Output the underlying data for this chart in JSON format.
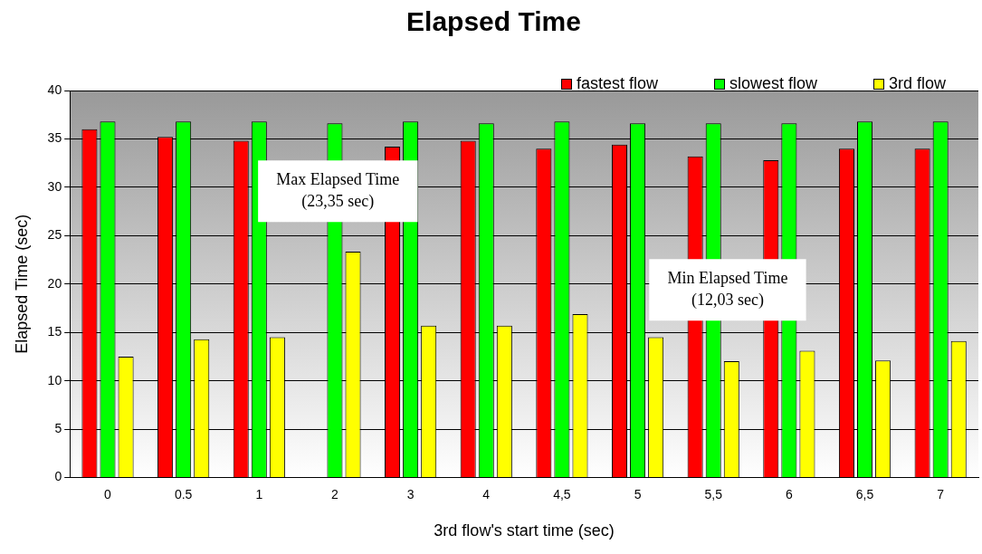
{
  "chart_data": {
    "type": "bar",
    "title": "Elapsed Time",
    "xlabel": "3rd flow's start time (sec)",
    "ylabel": "Elapsed Time (sec)",
    "categories": [
      "0",
      "0.5",
      "1",
      "2",
      "3",
      "4",
      "4,5",
      "5",
      "5,5",
      "6",
      "6,5",
      "7"
    ],
    "series": [
      {
        "name": "fastest flow",
        "color": "#ff0000",
        "values": [
          36.0,
          35.2,
          34.8,
          null,
          34.2,
          34.8,
          34.0,
          34.4,
          33.2,
          32.8,
          34.0,
          34.0
        ]
      },
      {
        "name": "slowest flow",
        "color": "#00ff00",
        "values": [
          36.8,
          36.8,
          36.8,
          36.6,
          36.8,
          36.6,
          36.8,
          36.6,
          36.6,
          36.6,
          36.8,
          36.8
        ]
      },
      {
        "name": "3rd flow",
        "color": "#ffff00",
        "values": [
          12.5,
          14.3,
          14.5,
          23.35,
          15.7,
          15.7,
          16.9,
          14.5,
          12.03,
          13.1,
          12.1,
          14.1
        ]
      }
    ],
    "ylim": [
      0,
      40
    ],
    "yticks": [
      0,
      5,
      10,
      15,
      20,
      25,
      30,
      35,
      40
    ],
    "grid": "y",
    "legend": "top right",
    "annotations": [
      "Max Elapsed Time\n(23,35 sec)",
      "Min Elapsed Time\n(12,03 sec)"
    ]
  }
}
